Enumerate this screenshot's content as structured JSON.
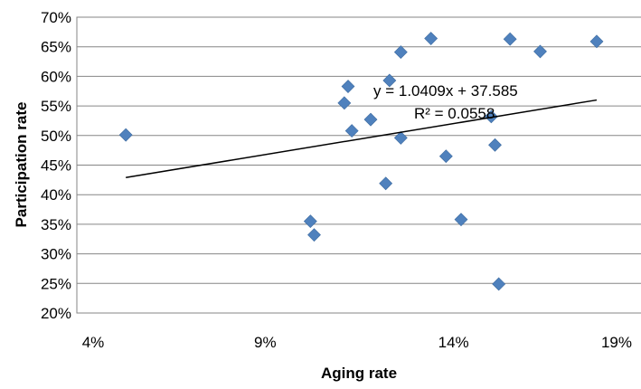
{
  "chart_data": {
    "type": "scatter",
    "xlabel": "Aging rate",
    "ylabel": "Participation rate",
    "xlim": [
      0.04,
      0.19
    ],
    "ylim": [
      0.2,
      0.7
    ],
    "x_ticks": [
      "4%",
      "9%",
      "14%",
      "19%"
    ],
    "y_ticks": [
      "20%",
      "25%",
      "30%",
      "35%",
      "40%",
      "45%",
      "50%",
      "55%",
      "60%",
      "65%",
      "70%"
    ],
    "grid": "horizontal",
    "marker_color": "#4F81BD",
    "series": [
      {
        "points": [
          {
            "x": 0.053,
            "y": 0.501
          },
          {
            "x": 0.102,
            "y": 0.355
          },
          {
            "x": 0.103,
            "y": 0.332
          },
          {
            "x": 0.111,
            "y": 0.555
          },
          {
            "x": 0.112,
            "y": 0.583
          },
          {
            "x": 0.113,
            "y": 0.508
          },
          {
            "x": 0.118,
            "y": 0.527
          },
          {
            "x": 0.122,
            "y": 0.419
          },
          {
            "x": 0.123,
            "y": 0.593
          },
          {
            "x": 0.126,
            "y": 0.496
          },
          {
            "x": 0.126,
            "y": 0.641
          },
          {
            "x": 0.134,
            "y": 0.664
          },
          {
            "x": 0.138,
            "y": 0.465
          },
          {
            "x": 0.142,
            "y": 0.358
          },
          {
            "x": 0.15,
            "y": 0.532
          },
          {
            "x": 0.151,
            "y": 0.484
          },
          {
            "x": 0.152,
            "y": 0.249
          },
          {
            "x": 0.155,
            "y": 0.663
          },
          {
            "x": 0.163,
            "y": 0.642
          },
          {
            "x": 0.178,
            "y": 0.659
          }
        ]
      }
    ],
    "trendline": {
      "x_range": [
        0.053,
        0.178
      ],
      "y_range": [
        0.429,
        0.56
      ],
      "color": "#000000"
    },
    "annotations": [
      "y = 1.0409x + 37.585",
      "R² = 0.0558"
    ]
  }
}
